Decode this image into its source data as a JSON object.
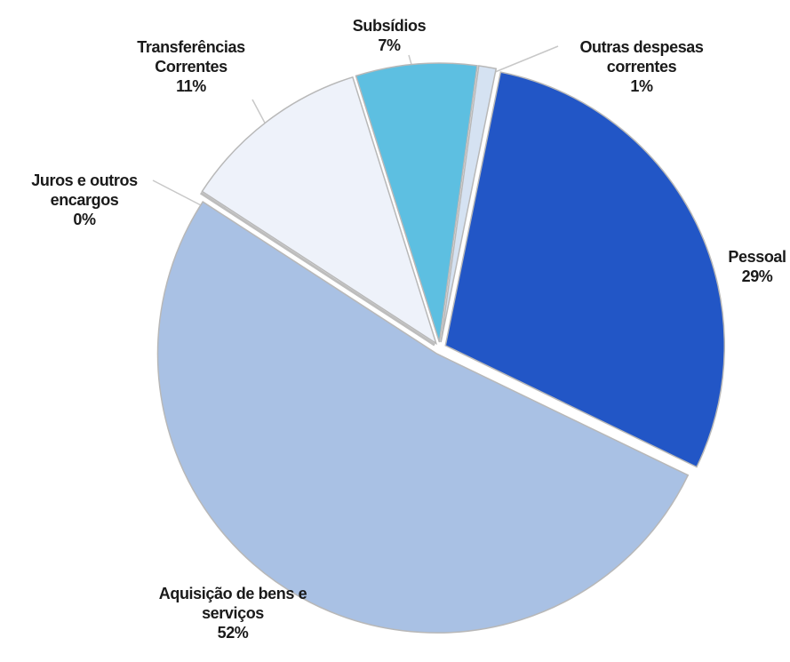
{
  "chart_data": {
    "type": "pie",
    "categories": [
      "Pessoal",
      "Aquisição de bens e serviços",
      "Juros e outros encargos",
      "Transferências Correntes",
      "Subsídios",
      "Outras despesas correntes"
    ],
    "values": [
      29,
      52,
      0,
      11,
      7,
      1
    ],
    "value_labels": [
      "29%",
      "52%",
      "0%",
      "11%",
      "7%",
      "1%"
    ],
    "colors": [
      "#2256c6",
      "#a9c1e4",
      "#bdbdbd",
      "#eef2fa",
      "#5dbfe1",
      "#d5e2f2"
    ]
  }
}
